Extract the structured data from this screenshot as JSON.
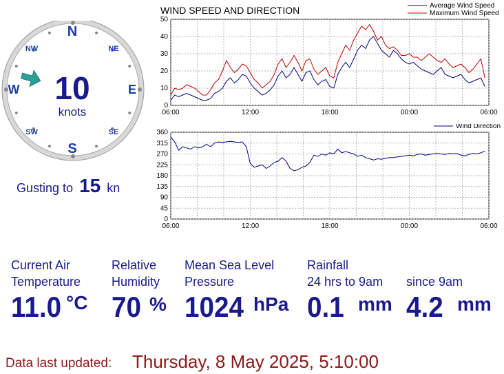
{
  "compass": {
    "labels": {
      "n": "N",
      "ne": "NE",
      "e": "E",
      "se": "SE",
      "s": "S",
      "sw": "SW",
      "w": "W",
      "nw": "NW"
    },
    "speed_value": "10",
    "speed_unit": "knots",
    "direction_deg": 285,
    "arrow_color": "#2aa198"
  },
  "gust": {
    "prefix": "Gusting to",
    "value": "15",
    "unit": "kn"
  },
  "chart_data": [
    {
      "type": "line",
      "title": "WIND SPEED AND DIRECTION",
      "xlabel": "",
      "ylabel": "",
      "x_ticks": [
        "06:00",
        "12:00",
        "18:00",
        "00:00",
        "06:00"
      ],
      "y_ticks": [
        0,
        10,
        20,
        30,
        40,
        50
      ],
      "ylim": [
        0,
        50
      ],
      "xlim_hours": [
        0,
        24
      ],
      "grid": true,
      "legend": "top-right",
      "series": [
        {
          "name": "Average Wind Speed",
          "color": "#00007f",
          "x_hours": [
            0,
            0.3,
            0.6,
            0.9,
            1.2,
            1.5,
            1.8,
            2.1,
            2.4,
            2.7,
            3.0,
            3.3,
            3.6,
            3.9,
            4.2,
            4.5,
            4.8,
            5.1,
            5.4,
            5.7,
            6.0,
            6.3,
            6.6,
            6.9,
            7.2,
            7.5,
            7.8,
            8.1,
            8.4,
            8.7,
            9.0,
            9.3,
            9.6,
            9.9,
            10.2,
            10.5,
            10.8,
            11.1,
            11.4,
            11.7,
            12.0,
            12.3,
            12.6,
            12.9,
            13.2,
            13.5,
            13.8,
            14.1,
            14.4,
            14.7,
            15.0,
            15.3,
            15.6,
            15.9,
            16.2,
            16.5,
            16.8,
            17.1,
            17.4,
            17.7,
            18.0,
            18.3,
            18.6,
            18.9,
            19.2,
            19.5,
            19.8,
            20.1,
            20.4,
            20.7,
            21.0,
            21.3,
            21.6,
            21.9,
            22.2,
            22.5,
            22.8,
            23.1,
            23.4,
            23.7
          ],
          "values": [
            3,
            6,
            5,
            6,
            7,
            6,
            5,
            4,
            3,
            3,
            4,
            7,
            8,
            10,
            14,
            16,
            13,
            15,
            18,
            17,
            13,
            10,
            8,
            6,
            7,
            9,
            12,
            17,
            20,
            16,
            18,
            22,
            18,
            14,
            19,
            20,
            15,
            12,
            14,
            15,
            11,
            10,
            18,
            22,
            25,
            22,
            27,
            32,
            35,
            33,
            38,
            40,
            36,
            32,
            30,
            28,
            32,
            30,
            27,
            25,
            24,
            25,
            23,
            21,
            20,
            19,
            18,
            20,
            22,
            18,
            17,
            16,
            17,
            18,
            15,
            13,
            14,
            15,
            16,
            11
          ],
          "raw_x_hours_note_ignored": ""
        },
        {
          "name": "Maximum Wind Speed",
          "color": "#c00000",
          "x_hours": [
            0,
            0.3,
            0.6,
            0.9,
            1.2,
            1.5,
            1.8,
            2.1,
            2.4,
            2.7,
            3.0,
            3.3,
            3.6,
            3.9,
            4.2,
            4.5,
            4.8,
            5.1,
            5.4,
            5.7,
            6.0,
            6.3,
            6.6,
            6.9,
            7.2,
            7.5,
            7.8,
            8.1,
            8.4,
            8.7,
            9.0,
            9.3,
            9.6,
            9.9,
            10.2,
            10.5,
            10.8,
            11.1,
            11.4,
            11.7,
            12.0,
            12.3,
            12.6,
            12.9,
            13.2,
            13.5,
            13.8,
            14.1,
            14.4,
            14.7,
            15.0,
            15.3,
            15.6,
            15.9,
            16.2,
            16.5,
            16.8,
            17.1,
            17.4,
            17.7,
            18.0,
            18.3,
            18.6,
            18.9,
            19.2,
            19.5,
            19.8,
            20.1,
            20.4,
            20.7,
            21.0,
            21.3,
            21.6,
            21.9,
            22.2,
            22.5,
            22.8,
            23.1,
            23.4,
            23.7
          ],
          "values": [
            6,
            10,
            9,
            10,
            12,
            11,
            10,
            8,
            6,
            6,
            9,
            13,
            15,
            20,
            26,
            22,
            19,
            21,
            24,
            23,
            19,
            15,
            13,
            10,
            12,
            14,
            18,
            24,
            27,
            22,
            25,
            29,
            25,
            20,
            26,
            27,
            21,
            18,
            20,
            22,
            17,
            16,
            25,
            30,
            35,
            32,
            38,
            42,
            46,
            44,
            47,
            43,
            38,
            40,
            35,
            33,
            34,
            32,
            29,
            29,
            30,
            28,
            28,
            26,
            28,
            30,
            28,
            26,
            25,
            27,
            24,
            22,
            23,
            24,
            22,
            19,
            21,
            24,
            27,
            16
          ]
        }
      ]
    },
    {
      "type": "line",
      "title": "",
      "xlabel": "",
      "ylabel": "",
      "x_ticks": [
        "06:00",
        "12:00",
        "18:00",
        "00:00",
        "06:00"
      ],
      "y_ticks": [
        0,
        45,
        90,
        135,
        180,
        225,
        270,
        315,
        360
      ],
      "ylim": [
        0,
        360
      ],
      "xlim_hours": [
        0,
        24
      ],
      "grid": true,
      "legend": "top-right",
      "series": [
        {
          "name": "Wind Direction",
          "color": "#00007f",
          "x_hours": [
            0,
            0.3,
            0.6,
            0.9,
            1.2,
            1.5,
            1.8,
            2.1,
            2.4,
            2.7,
            3.0,
            3.3,
            3.6,
            3.9,
            4.2,
            4.5,
            4.8,
            5.1,
            5.4,
            5.7,
            6.0,
            6.3,
            6.6,
            6.9,
            7.2,
            7.5,
            7.8,
            8.1,
            8.4,
            8.7,
            9.0,
            9.3,
            9.6,
            9.9,
            10.2,
            10.5,
            10.8,
            11.1,
            11.4,
            11.7,
            12.0,
            12.3,
            12.6,
            12.9,
            13.2,
            13.5,
            13.8,
            14.1,
            14.4,
            14.7,
            15.0,
            15.3,
            15.6,
            15.9,
            16.2,
            16.5,
            16.8,
            17.1,
            17.4,
            17.7,
            18.0,
            18.3,
            18.6,
            18.9,
            19.2,
            19.5,
            19.8,
            20.1,
            20.4,
            20.7,
            21.0,
            21.3,
            21.6,
            21.9,
            22.2,
            22.5,
            22.8,
            23.1,
            23.4,
            23.7
          ],
          "values": [
            340,
            320,
            285,
            300,
            295,
            290,
            300,
            295,
            300,
            310,
            300,
            315,
            320,
            318,
            320,
            322,
            320,
            318,
            320,
            300,
            230,
            215,
            220,
            225,
            210,
            220,
            235,
            240,
            255,
            240,
            210,
            200,
            205,
            215,
            220,
            235,
            265,
            260,
            270,
            265,
            275,
            270,
            290,
            275,
            280,
            275,
            270,
            260,
            265,
            255,
            250,
            245,
            250,
            248,
            252,
            255,
            255,
            258,
            260,
            262,
            265,
            262,
            268,
            270,
            265,
            268,
            270,
            272,
            270,
            268,
            272,
            270,
            272,
            265,
            262,
            268,
            272,
            270,
            275,
            282
          ]
        }
      ]
    }
  ],
  "readings": {
    "temp": {
      "label1": "Current Air",
      "label2": "Temperature",
      "value": "11.0",
      "unit": "°C"
    },
    "humidity": {
      "label1": "Relative",
      "label2": "Humidity",
      "value": "70",
      "unit": "%"
    },
    "pressure": {
      "label1": "Mean Sea Level",
      "label2": "Pressure",
      "value": "1024",
      "unit": "hPa"
    },
    "rainfall": {
      "label1": "Rainfall",
      "label2a": "24 hrs to 9am",
      "value_a": "0.1",
      "unit_a": "mm",
      "label2b": "since 9am",
      "value_b": "4.2",
      "unit_b": "mm"
    }
  },
  "footer": {
    "label": "Data last updated:",
    "value": "Thursday, 8 May 2025, 5:10:00"
  },
  "colors": {
    "text_blue": "#1a1a8c",
    "text_red": "#8b1a1a"
  }
}
